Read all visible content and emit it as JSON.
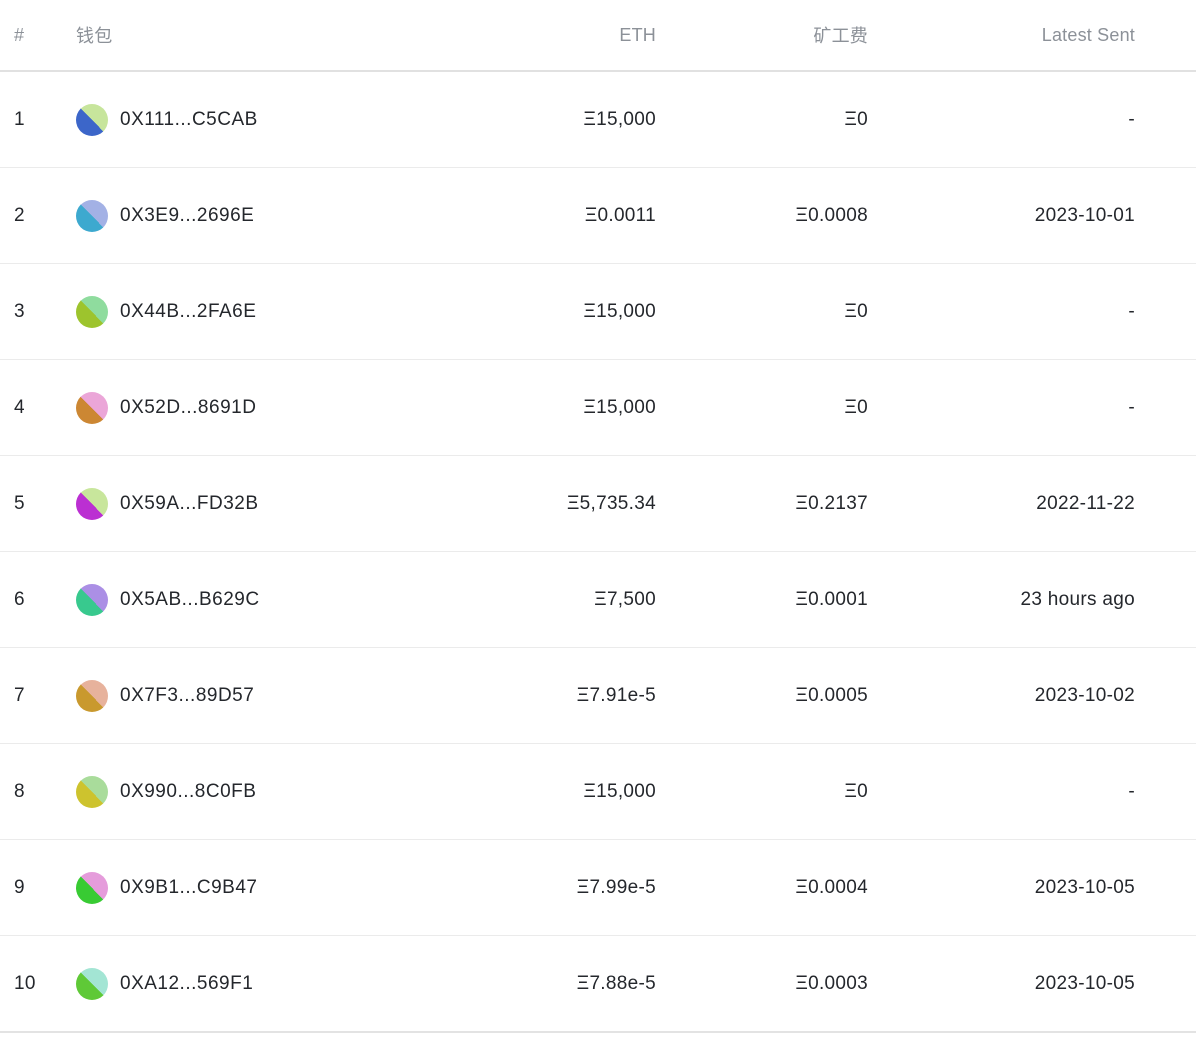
{
  "table": {
    "columns": [
      {
        "key": "index",
        "label": "#"
      },
      {
        "key": "wallet",
        "label": "钱包"
      },
      {
        "key": "eth",
        "label": "ETH"
      },
      {
        "key": "fee",
        "label": "矿工费"
      },
      {
        "key": "latest_sent",
        "label": "Latest Sent"
      }
    ],
    "rows": [
      {
        "index": "1",
        "wallet": "0X111...C5CAB",
        "eth": "Ξ15,000",
        "fee": "Ξ0",
        "latest_sent": "-",
        "avatar": {
          "top": "#c7e59c",
          "bottom": "#3c66c9"
        }
      },
      {
        "index": "2",
        "wallet": "0X3E9...2696E",
        "eth": "Ξ0.0011",
        "fee": "Ξ0.0008",
        "latest_sent": "2023-10-01",
        "avatar": {
          "top": "#a3b1e5",
          "bottom": "#3da9cf"
        }
      },
      {
        "index": "3",
        "wallet": "0X44B...2FA6E",
        "eth": "Ξ15,000",
        "fee": "Ξ0",
        "latest_sent": "-",
        "avatar": {
          "top": "#8fdc9e",
          "bottom": "#9dc42d"
        }
      },
      {
        "index": "4",
        "wallet": "0X52D...8691D",
        "eth": "Ξ15,000",
        "fee": "Ξ0",
        "latest_sent": "-",
        "avatar": {
          "top": "#eba6d8",
          "bottom": "#cc8733"
        }
      },
      {
        "index": "5",
        "wallet": "0X59A...FD32B",
        "eth": "Ξ5,735.34",
        "fee": "Ξ0.2137",
        "latest_sent": "2022-11-22",
        "avatar": {
          "top": "#c8e69c",
          "bottom": "#bb2fd2"
        }
      },
      {
        "index": "6",
        "wallet": "0X5AB...B629C",
        "eth": "Ξ7,500",
        "fee": "Ξ0.0001",
        "latest_sent": "23 hours ago",
        "avatar": {
          "top": "#ab8fe5",
          "bottom": "#38c98e"
        }
      },
      {
        "index": "7",
        "wallet": "0X7F3...89D57",
        "eth": "Ξ7.91e-5",
        "fee": "Ξ0.0005",
        "latest_sent": "2023-10-02",
        "avatar": {
          "top": "#e7b29c",
          "bottom": "#c9992e"
        }
      },
      {
        "index": "8",
        "wallet": "0X990...8C0FB",
        "eth": "Ξ15,000",
        "fee": "Ξ0",
        "latest_sent": "-",
        "avatar": {
          "top": "#a9dc9b",
          "bottom": "#cdc32e"
        }
      },
      {
        "index": "9",
        "wallet": "0X9B1...C9B47",
        "eth": "Ξ7.99e-5",
        "fee": "Ξ0.0004",
        "latest_sent": "2023-10-05",
        "avatar": {
          "top": "#e59cdb",
          "bottom": "#38cb33"
        }
      },
      {
        "index": "10",
        "wallet": "0XA12...569F1",
        "eth": "Ξ7.88e-5",
        "fee": "Ξ0.0003",
        "latest_sent": "2023-10-05",
        "avatar": {
          "top": "#a3e5d4",
          "bottom": "#5fc937"
        }
      }
    ]
  },
  "colors": {
    "background": "#ffffff",
    "header_text": "#8c9198",
    "body_text": "#24272c",
    "row_divider": "#ebebeb",
    "header_divider": "#e1e1e1"
  }
}
